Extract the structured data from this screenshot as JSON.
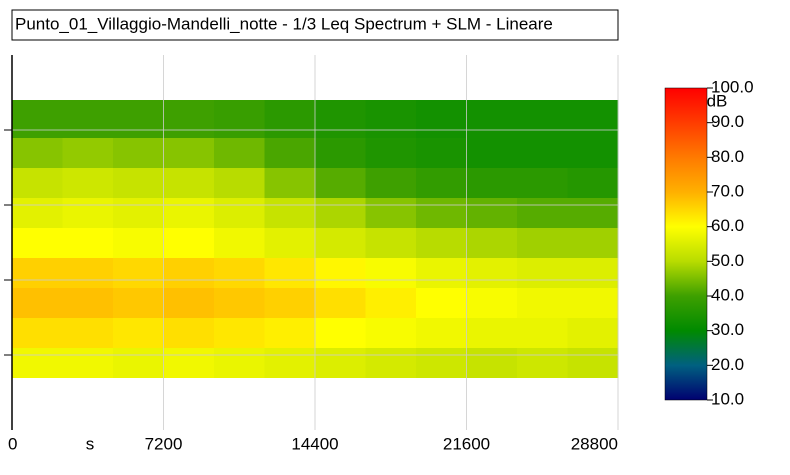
{
  "chart_data": {
    "type": "heatmap",
    "title": "Punto_01_Villaggio-Mandelli_notte - 1/3 Leq Spectrum + SLM - Lineare",
    "x_label": "s",
    "xlim": [
      0,
      28800
    ],
    "xticks": [
      0,
      7200,
      14400,
      21600,
      28800
    ],
    "ylim": [
      0,
      5
    ],
    "yticks": [
      1,
      2,
      3,
      4
    ],
    "x_bins": [
      0,
      2400,
      4800,
      7200,
      9600,
      12000,
      14400,
      16800,
      19200,
      21600,
      24000,
      26400,
      28800
    ],
    "y_bins": [
      0.7,
      1.1,
      1.5,
      1.9,
      2.3,
      2.7,
      3.1,
      3.5,
      3.9,
      4.4
    ],
    "values": [
      [
        58,
        58,
        57,
        58,
        57,
        56,
        55,
        54,
        53,
        52,
        53,
        52
      ],
      [
        64,
        64,
        63,
        64,
        63,
        62,
        60,
        59,
        58,
        57,
        57,
        56
      ],
      [
        68,
        68,
        67,
        68,
        67,
        66,
        64,
        62,
        60,
        59,
        58,
        58
      ],
      [
        66,
        66,
        65,
        66,
        65,
        63,
        61,
        59,
        57,
        56,
        55,
        55
      ],
      [
        60,
        60,
        59,
        60,
        58,
        56,
        54,
        52,
        50,
        49,
        48,
        48
      ],
      [
        56,
        57,
        56,
        57,
        55,
        52,
        49,
        46,
        44,
        43,
        42,
        42
      ],
      [
        52,
        53,
        52,
        52,
        50,
        46,
        42,
        40,
        38,
        37,
        37,
        36
      ],
      [
        46,
        47,
        46,
        46,
        44,
        41,
        37,
        35,
        34,
        33,
        33,
        33
      ],
      [
        40,
        40,
        40,
        40,
        39,
        37,
        35,
        34,
        33,
        33,
        33,
        33
      ]
    ],
    "colorbar_label": "dB",
    "colorbar_lim": [
      10,
      100
    ],
    "colorbar_ticks": [
      {
        "value": 10,
        "label": "10.0"
      },
      {
        "value": 20,
        "label": "20.0"
      },
      {
        "value": 30,
        "label": "30.0"
      },
      {
        "value": 40,
        "label": "40.0"
      },
      {
        "value": 50,
        "label": "50.0"
      },
      {
        "value": 60,
        "label": "60.0"
      },
      {
        "value": 70,
        "label": "70.0"
      },
      {
        "value": 80,
        "label": "80.0"
      },
      {
        "value": 90,
        "label": "90.0"
      },
      {
        "value": 100,
        "label": "100.0"
      }
    ],
    "colorbar_colors": [
      "#000070",
      "#006080",
      "#008a00",
      "#3ea000",
      "#b8dc00",
      "#ffff00",
      "#ffb000",
      "#ff7a00",
      "#ff3c00",
      "#ff0000"
    ],
    "grid": true
  }
}
